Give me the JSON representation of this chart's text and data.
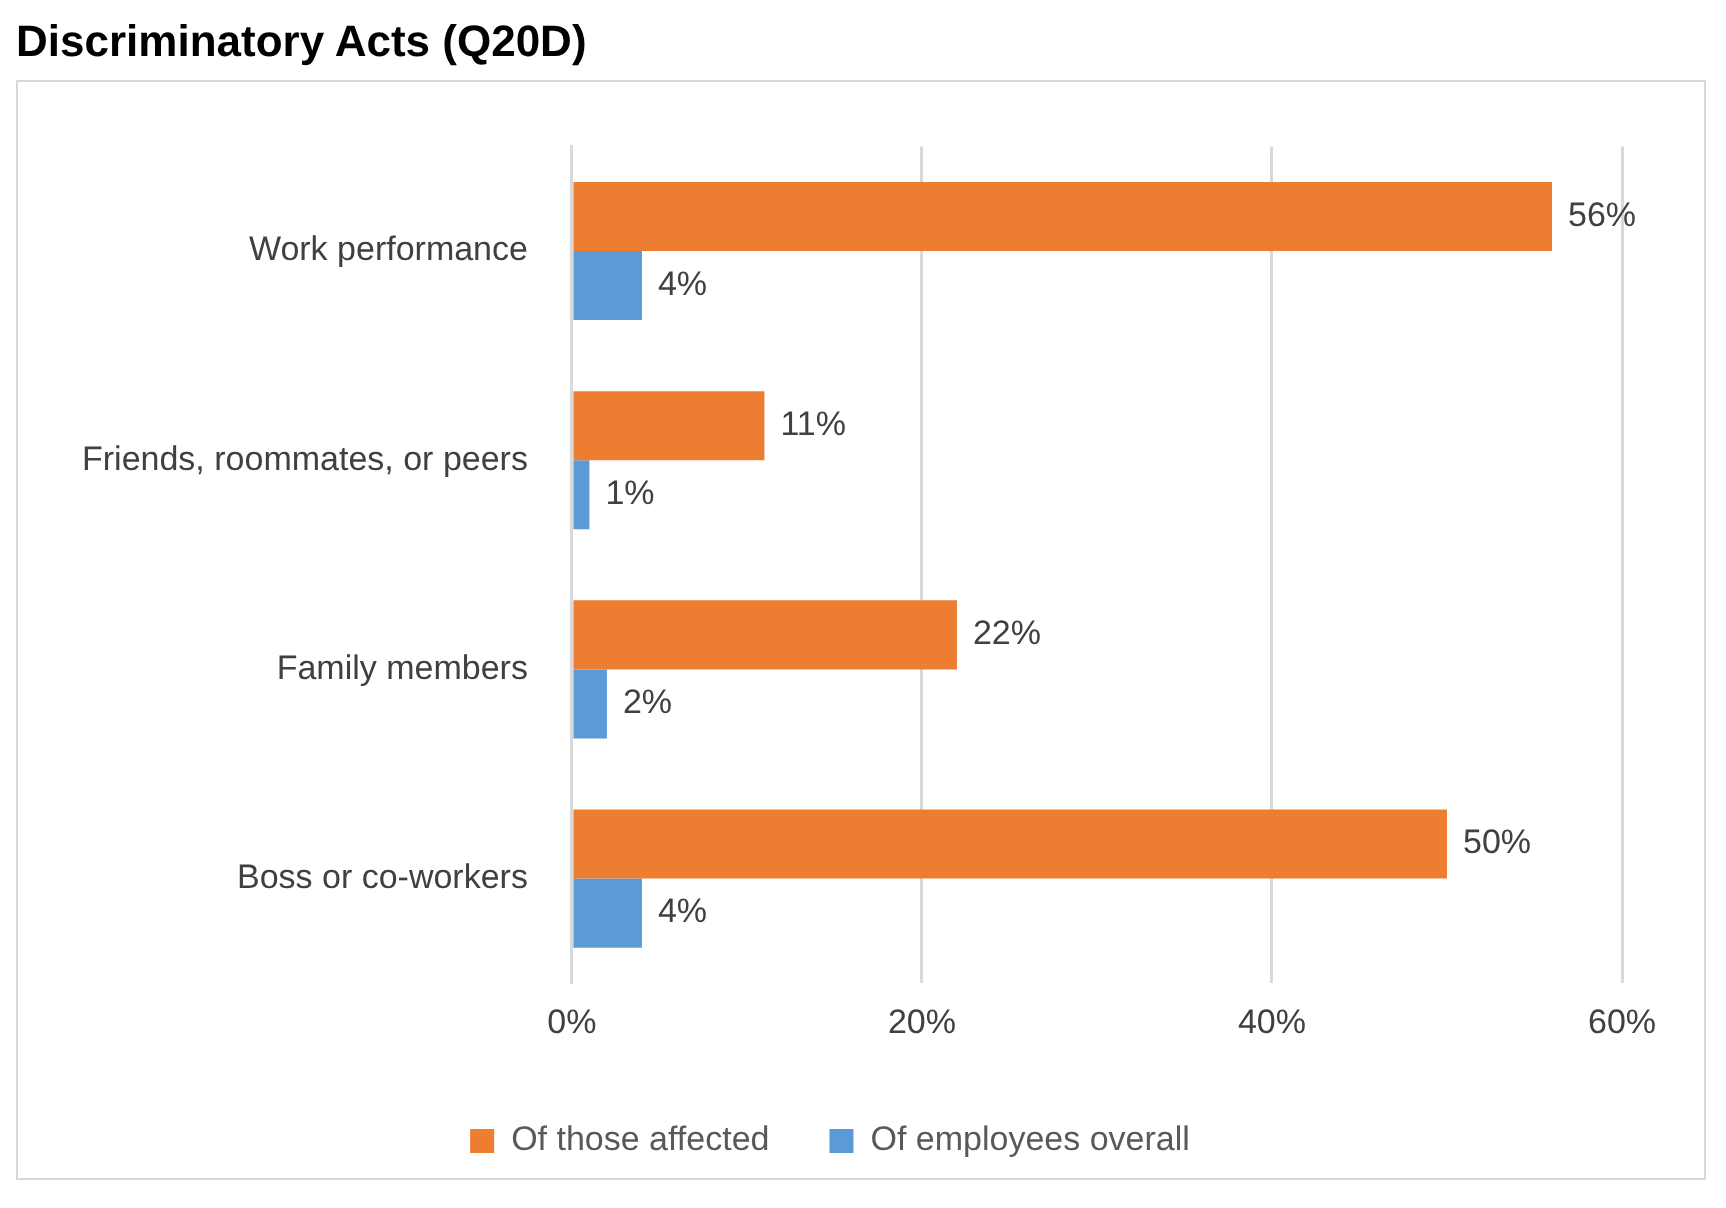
{
  "chart_data": {
    "type": "bar",
    "title": "Discriminatory Acts (Q20D)",
    "orientation": "horizontal",
    "categories": [
      "Work performance",
      "Friends, roommates, or peers",
      "Family members",
      "Boss or co-workers"
    ],
    "series": [
      {
        "name": "Of those affected",
        "color": "#ed7d31",
        "values": [
          56,
          11,
          22,
          50
        ],
        "value_labels": [
          "56%",
          "11%",
          "22%",
          "50%"
        ]
      },
      {
        "name": "Of employees overall",
        "color": "#5b9bd5",
        "values": [
          4,
          1,
          2,
          4
        ],
        "value_labels": [
          "4%",
          "1%",
          "2%",
          "4%"
        ]
      }
    ],
    "xlim": [
      0,
      60
    ],
    "xticks": [
      {
        "value": 0,
        "label": "0%"
      },
      {
        "value": 20,
        "label": "20%"
      },
      {
        "value": 40,
        "label": "40%"
      },
      {
        "value": 60,
        "label": "60%"
      }
    ],
    "grid": "x",
    "legend": "bottom"
  }
}
